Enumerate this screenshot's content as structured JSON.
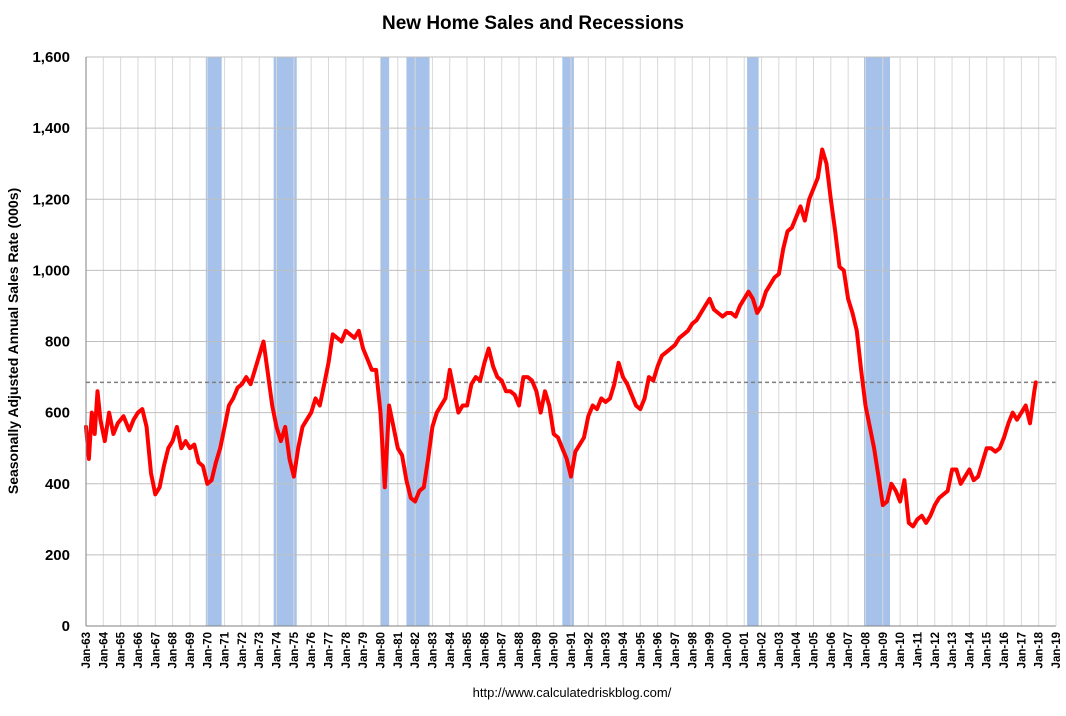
{
  "chart_data": {
    "type": "line",
    "title": "New Home Sales and Recessions",
    "ylabel": "Seasonally Adjusted Annual Sales Rate (000s)",
    "xlabel": "",
    "source": "http://www.calculatedriskblog.com/",
    "ylim": [
      0,
      1600
    ],
    "yticks": [
      "0",
      "200",
      "400",
      "600",
      "800",
      "1,000",
      "1,200",
      "1,400",
      "1,600"
    ],
    "xlim": [
      "1963-01",
      "2019-01"
    ],
    "xticks": [
      "Jan-63",
      "Jan-64",
      "Jan-65",
      "Jan-66",
      "Jan-67",
      "Jan-68",
      "Jan-69",
      "Jan-70",
      "Jan-71",
      "Jan-72",
      "Jan-73",
      "Jan-74",
      "Jan-75",
      "Jan-76",
      "Jan-77",
      "Jan-78",
      "Jan-79",
      "Jan-80",
      "Jan-81",
      "Jan-82",
      "Jan-83",
      "Jan-84",
      "Jan-85",
      "Jan-86",
      "Jan-87",
      "Jan-88",
      "Jan-89",
      "Jan-90",
      "Jan-91",
      "Jan-92",
      "Jan-93",
      "Jan-94",
      "Jan-95",
      "Jan-96",
      "Jan-97",
      "Jan-98",
      "Jan-99",
      "Jan-00",
      "Jan-01",
      "Jan-02",
      "Jan-03",
      "Jan-04",
      "Jan-05",
      "Jan-06",
      "Jan-07",
      "Jan-08",
      "Jan-09",
      "Jan-10",
      "Jan-11",
      "Jan-12",
      "Jan-13",
      "Jan-14",
      "Jan-15",
      "Jan-16",
      "Jan-17",
      "Jan-18",
      "Jan-19"
    ],
    "grid": true,
    "legend": "none",
    "series": [
      {
        "color": "#ff0000",
        "points": [
          [
            "1963-01",
            560
          ],
          [
            "1963-03",
            470
          ],
          [
            "1963-05",
            600
          ],
          [
            "1963-07",
            540
          ],
          [
            "1963-09",
            660
          ],
          [
            "1963-11",
            580
          ],
          [
            "1964-02",
            520
          ],
          [
            "1964-05",
            600
          ],
          [
            "1964-08",
            540
          ],
          [
            "1964-11",
            570
          ],
          [
            "1965-03",
            590
          ],
          [
            "1965-07",
            550
          ],
          [
            "1965-10",
            580
          ],
          [
            "1966-01",
            600
          ],
          [
            "1966-04",
            610
          ],
          [
            "1966-07",
            560
          ],
          [
            "1966-10",
            430
          ],
          [
            "1967-01",
            370
          ],
          [
            "1967-04",
            390
          ],
          [
            "1967-07",
            450
          ],
          [
            "1967-10",
            500
          ],
          [
            "1968-01",
            520
          ],
          [
            "1968-04",
            560
          ],
          [
            "1968-07",
            500
          ],
          [
            "1968-10",
            520
          ],
          [
            "1969-01",
            500
          ],
          [
            "1969-04",
            510
          ],
          [
            "1969-07",
            460
          ],
          [
            "1969-10",
            450
          ],
          [
            "1970-01",
            400
          ],
          [
            "1970-04",
            410
          ],
          [
            "1970-07",
            460
          ],
          [
            "1970-10",
            500
          ],
          [
            "1971-01",
            560
          ],
          [
            "1971-04",
            620
          ],
          [
            "1971-07",
            640
          ],
          [
            "1971-10",
            670
          ],
          [
            "1972-01",
            680
          ],
          [
            "1972-04",
            700
          ],
          [
            "1972-07",
            680
          ],
          [
            "1972-10",
            720
          ],
          [
            "1973-01",
            760
          ],
          [
            "1973-04",
            800
          ],
          [
            "1973-07",
            710
          ],
          [
            "1973-10",
            620
          ],
          [
            "1974-01",
            560
          ],
          [
            "1974-04",
            520
          ],
          [
            "1974-07",
            560
          ],
          [
            "1974-10",
            470
          ],
          [
            "1975-01",
            420
          ],
          [
            "1975-04",
            500
          ],
          [
            "1975-07",
            560
          ],
          [
            "1975-10",
            580
          ],
          [
            "1976-01",
            600
          ],
          [
            "1976-04",
            640
          ],
          [
            "1976-07",
            620
          ],
          [
            "1976-10",
            680
          ],
          [
            "1977-01",
            740
          ],
          [
            "1977-04",
            820
          ],
          [
            "1977-07",
            810
          ],
          [
            "1977-10",
            800
          ],
          [
            "1978-01",
            830
          ],
          [
            "1978-04",
            820
          ],
          [
            "1978-07",
            810
          ],
          [
            "1978-10",
            830
          ],
          [
            "1979-01",
            780
          ],
          [
            "1979-04",
            750
          ],
          [
            "1979-07",
            720
          ],
          [
            "1979-10",
            720
          ],
          [
            "1980-01",
            600
          ],
          [
            "1980-04",
            390
          ],
          [
            "1980-07",
            620
          ],
          [
            "1980-10",
            560
          ],
          [
            "1981-01",
            500
          ],
          [
            "1981-04",
            480
          ],
          [
            "1981-07",
            410
          ],
          [
            "1981-10",
            360
          ],
          [
            "1982-01",
            350
          ],
          [
            "1982-04",
            380
          ],
          [
            "1982-07",
            390
          ],
          [
            "1982-10",
            470
          ],
          [
            "1983-01",
            560
          ],
          [
            "1983-04",
            600
          ],
          [
            "1983-07",
            620
          ],
          [
            "1983-10",
            640
          ],
          [
            "1984-01",
            720
          ],
          [
            "1984-04",
            660
          ],
          [
            "1984-07",
            600
          ],
          [
            "1984-10",
            620
          ],
          [
            "1985-01",
            620
          ],
          [
            "1985-04",
            680
          ],
          [
            "1985-07",
            700
          ],
          [
            "1985-10",
            690
          ],
          [
            "1986-01",
            740
          ],
          [
            "1986-04",
            780
          ],
          [
            "1986-07",
            730
          ],
          [
            "1986-10",
            700
          ],
          [
            "1987-01",
            690
          ],
          [
            "1987-04",
            660
          ],
          [
            "1987-07",
            660
          ],
          [
            "1987-10",
            650
          ],
          [
            "1988-01",
            620
          ],
          [
            "1988-04",
            700
          ],
          [
            "1988-07",
            700
          ],
          [
            "1988-10",
            690
          ],
          [
            "1989-01",
            660
          ],
          [
            "1989-04",
            600
          ],
          [
            "1989-07",
            660
          ],
          [
            "1989-10",
            620
          ],
          [
            "1990-01",
            540
          ],
          [
            "1990-04",
            530
          ],
          [
            "1990-07",
            500
          ],
          [
            "1990-10",
            470
          ],
          [
            "1991-01",
            420
          ],
          [
            "1991-04",
            490
          ],
          [
            "1991-07",
            510
          ],
          [
            "1991-10",
            530
          ],
          [
            "1992-01",
            590
          ],
          [
            "1992-04",
            620
          ],
          [
            "1992-07",
            610
          ],
          [
            "1992-10",
            640
          ],
          [
            "1993-01",
            630
          ],
          [
            "1993-04",
            640
          ],
          [
            "1993-07",
            680
          ],
          [
            "1993-10",
            740
          ],
          [
            "1994-01",
            700
          ],
          [
            "1994-04",
            680
          ],
          [
            "1994-07",
            650
          ],
          [
            "1994-10",
            620
          ],
          [
            "1995-01",
            610
          ],
          [
            "1995-04",
            640
          ],
          [
            "1995-07",
            700
          ],
          [
            "1995-10",
            690
          ],
          [
            "1996-01",
            730
          ],
          [
            "1996-04",
            760
          ],
          [
            "1996-07",
            770
          ],
          [
            "1996-10",
            780
          ],
          [
            "1997-01",
            790
          ],
          [
            "1997-04",
            810
          ],
          [
            "1997-07",
            820
          ],
          [
            "1997-10",
            830
          ],
          [
            "1998-01",
            850
          ],
          [
            "1998-04",
            860
          ],
          [
            "1998-07",
            880
          ],
          [
            "1998-10",
            900
          ],
          [
            "1999-01",
            920
          ],
          [
            "1999-04",
            890
          ],
          [
            "1999-07",
            880
          ],
          [
            "1999-10",
            870
          ],
          [
            "2000-01",
            880
          ],
          [
            "2000-04",
            880
          ],
          [
            "2000-07",
            870
          ],
          [
            "2000-10",
            900
          ],
          [
            "2001-01",
            920
          ],
          [
            "2001-04",
            940
          ],
          [
            "2001-07",
            920
          ],
          [
            "2001-10",
            880
          ],
          [
            "2002-01",
            900
          ],
          [
            "2002-04",
            940
          ],
          [
            "2002-07",
            960
          ],
          [
            "2002-10",
            980
          ],
          [
            "2003-01",
            990
          ],
          [
            "2003-04",
            1060
          ],
          [
            "2003-07",
            1110
          ],
          [
            "2003-10",
            1120
          ],
          [
            "2004-01",
            1150
          ],
          [
            "2004-04",
            1180
          ],
          [
            "2004-07",
            1140
          ],
          [
            "2004-10",
            1200
          ],
          [
            "2005-01",
            1230
          ],
          [
            "2005-04",
            1260
          ],
          [
            "2005-07",
            1340
          ],
          [
            "2005-10",
            1300
          ],
          [
            "2006-01",
            1200
          ],
          [
            "2006-04",
            1110
          ],
          [
            "2006-07",
            1010
          ],
          [
            "2006-10",
            1000
          ],
          [
            "2007-01",
            920
          ],
          [
            "2007-04",
            880
          ],
          [
            "2007-07",
            830
          ],
          [
            "2007-10",
            720
          ],
          [
            "2008-01",
            620
          ],
          [
            "2008-04",
            560
          ],
          [
            "2008-07",
            500
          ],
          [
            "2008-10",
            420
          ],
          [
            "2009-01",
            340
          ],
          [
            "2009-04",
            350
          ],
          [
            "2009-07",
            400
          ],
          [
            "2009-10",
            380
          ],
          [
            "2010-01",
            350
          ],
          [
            "2010-04",
            410
          ],
          [
            "2010-07",
            290
          ],
          [
            "2010-10",
            280
          ],
          [
            "2011-01",
            300
          ],
          [
            "2011-04",
            310
          ],
          [
            "2011-07",
            290
          ],
          [
            "2011-10",
            310
          ],
          [
            "2012-01",
            340
          ],
          [
            "2012-04",
            360
          ],
          [
            "2012-07",
            370
          ],
          [
            "2012-10",
            380
          ],
          [
            "2013-01",
            440
          ],
          [
            "2013-04",
            440
          ],
          [
            "2013-07",
            400
          ],
          [
            "2013-10",
            420
          ],
          [
            "2014-01",
            440
          ],
          [
            "2014-04",
            410
          ],
          [
            "2014-07",
            420
          ],
          [
            "2014-10",
            460
          ],
          [
            "2015-01",
            500
          ],
          [
            "2015-04",
            500
          ],
          [
            "2015-07",
            490
          ],
          [
            "2015-10",
            500
          ],
          [
            "2016-01",
            530
          ],
          [
            "2016-04",
            570
          ],
          [
            "2016-07",
            600
          ],
          [
            "2016-10",
            580
          ],
          [
            "2017-01",
            600
          ],
          [
            "2017-04",
            620
          ],
          [
            "2017-07",
            570
          ],
          [
            "2017-10",
            660
          ],
          [
            "2017-11",
            685
          ]
        ]
      }
    ],
    "reference_line": {
      "value": 685,
      "style": "dashed",
      "color": "#7f7f7f"
    },
    "shaded_regions": [
      {
        "label": "recession",
        "start": "1969-12",
        "end": "1970-11",
        "color": "#a6c2ea"
      },
      {
        "label": "recession",
        "start": "1973-11",
        "end": "1975-03",
        "color": "#a6c2ea"
      },
      {
        "label": "recession",
        "start": "1980-01",
        "end": "1980-07",
        "color": "#a6c2ea"
      },
      {
        "label": "recession",
        "start": "1981-07",
        "end": "1982-11",
        "color": "#a6c2ea"
      },
      {
        "label": "recession",
        "start": "1990-07",
        "end": "1991-03",
        "color": "#a6c2ea"
      },
      {
        "label": "recession",
        "start": "2001-03",
        "end": "2001-11",
        "color": "#a6c2ea"
      },
      {
        "label": "recession",
        "start": "2007-12",
        "end": "2009-06",
        "color": "#a6c2ea"
      }
    ]
  }
}
